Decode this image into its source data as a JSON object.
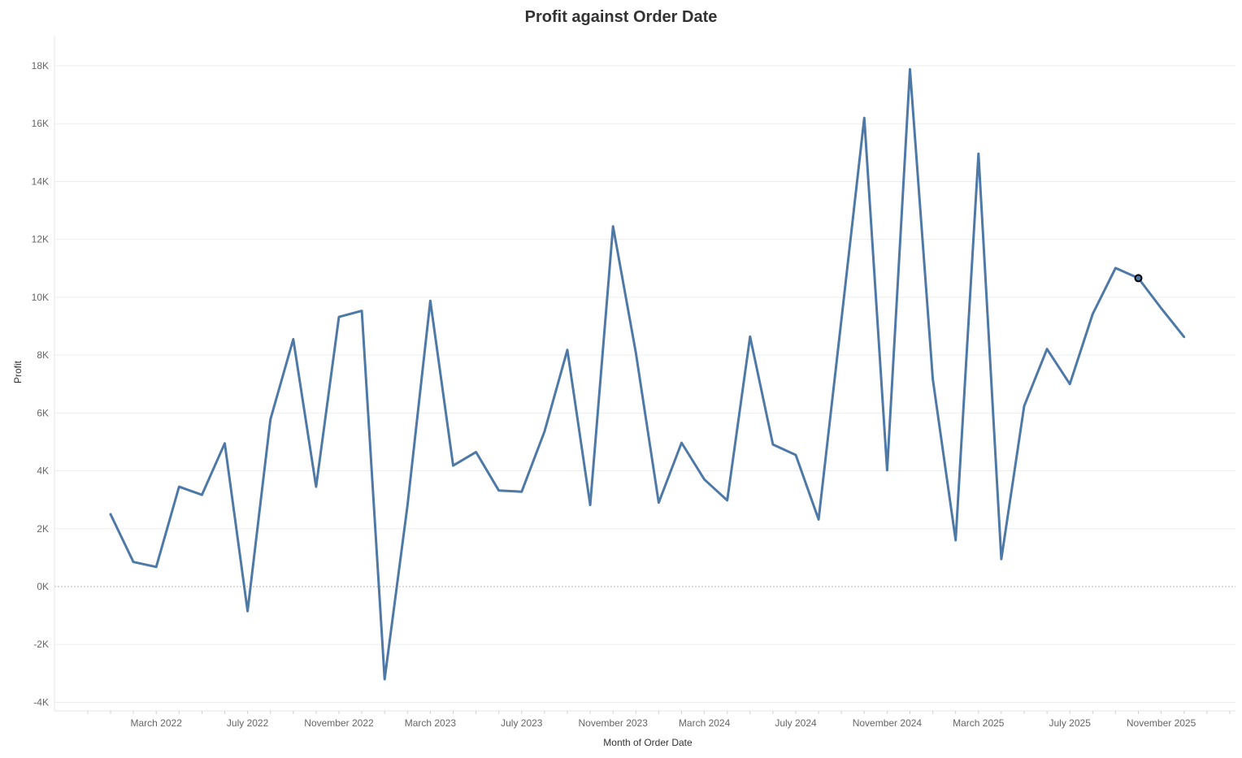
{
  "chart_data": {
    "type": "line",
    "title": "Profit against Order Date",
    "xlabel": "Month of Order Date",
    "ylabel": "Profit",
    "x_axis": {
      "type": "date",
      "range": [
        "2021-12",
        "2026-02"
      ],
      "tick_labels": [
        "March 2022",
        "July 2022",
        "November 2022",
        "March 2023",
        "July 2023",
        "November 2023",
        "March 2024",
        "July 2024",
        "November 2024",
        "March 2025",
        "July 2025",
        "November 2025"
      ],
      "tick_dates": [
        "2022-03",
        "2022-07",
        "2022-11",
        "2023-03",
        "2023-07",
        "2023-11",
        "2024-03",
        "2024-07",
        "2024-11",
        "2025-03",
        "2025-07",
        "2025-11"
      ]
    },
    "y_axis": {
      "range": [
        -4300,
        19000
      ],
      "ticks": [
        -4000,
        -2000,
        0,
        2000,
        4000,
        6000,
        8000,
        10000,
        12000,
        14000,
        16000,
        18000
      ],
      "tick_labels": [
        "-4K",
        "-2K",
        "0K",
        "2K",
        "4K",
        "6K",
        "8K",
        "10K",
        "12K",
        "14K",
        "16K",
        "18K"
      ]
    },
    "grid": true,
    "zero_line": true,
    "series": [
      {
        "color": "#4e79a7",
        "x": [
          "2022-01",
          "2022-02",
          "2022-03",
          "2022-04",
          "2022-05",
          "2022-06",
          "2022-07",
          "2022-08",
          "2022-09",
          "2022-10",
          "2022-11",
          "2022-12",
          "2023-01",
          "2023-02",
          "2023-03",
          "2023-04",
          "2023-05",
          "2023-06",
          "2023-07",
          "2023-08",
          "2023-09",
          "2023-10",
          "2023-11",
          "2023-12",
          "2024-01",
          "2024-02",
          "2024-03",
          "2024-04",
          "2024-05",
          "2024-06",
          "2024-07",
          "2024-08",
          "2024-09",
          "2024-10",
          "2024-11",
          "2024-12",
          "2025-01",
          "2025-02",
          "2025-03",
          "2025-04",
          "2025-05",
          "2025-06",
          "2025-07",
          "2025-08",
          "2025-09",
          "2025-10",
          "2025-11",
          "2025-12"
        ],
        "values": [
          2500,
          850,
          680,
          3450,
          3170,
          4950,
          -850,
          5780,
          8550,
          3450,
          9320,
          9530,
          -3200,
          2800,
          9880,
          4180,
          4650,
          3320,
          3280,
          5360,
          8180,
          2820,
          12450,
          8080,
          2900,
          4970,
          3700,
          2980,
          8640,
          4910,
          4550,
          2320,
          9230,
          16200,
          4020,
          17880,
          7170,
          1600,
          14960,
          950,
          6240,
          8210,
          7000,
          9420,
          11010,
          10660,
          9620,
          8630
        ]
      }
    ],
    "highlighted_point": {
      "x": "2025-10",
      "value": 10660
    }
  }
}
